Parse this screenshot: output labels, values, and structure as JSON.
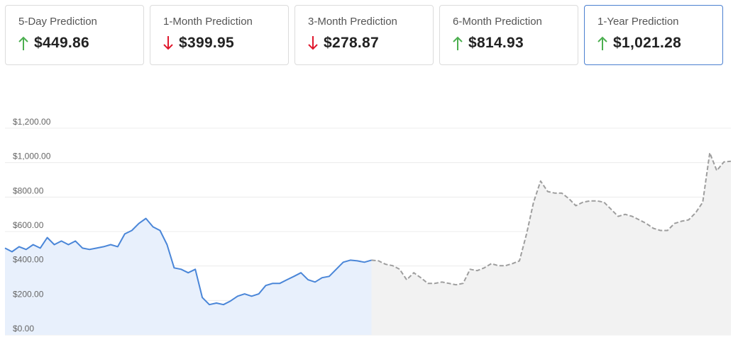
{
  "cards": [
    {
      "label": "5-Day Prediction",
      "value": "$449.86",
      "direction": "up",
      "selected": false
    },
    {
      "label": "1-Month Prediction",
      "value": "$399.95",
      "direction": "down",
      "selected": false
    },
    {
      "label": "3-Month Prediction",
      "value": "$278.87",
      "direction": "down",
      "selected": false
    },
    {
      "label": "6-Month Prediction",
      "value": "$814.93",
      "direction": "up",
      "selected": false
    },
    {
      "label": "1-Year Prediction",
      "value": "$1,021.28",
      "direction": "up",
      "selected": true
    }
  ],
  "arrow_colors": {
    "up": "#4caf50",
    "down": "#e0182d"
  },
  "chart_data": {
    "type": "line",
    "grid": true,
    "ylim": [
      0,
      1200
    ],
    "yticks": [
      {
        "value": 0,
        "label": "$0.00"
      },
      {
        "value": 200,
        "label": "$200.00"
      },
      {
        "value": 400,
        "label": "$400.00"
      },
      {
        "value": 600,
        "label": "$600.00"
      },
      {
        "value": 800,
        "label": "$800.00"
      },
      {
        "value": 1000,
        "label": "$1,000.00"
      },
      {
        "value": 1200,
        "label": "$1,200.00"
      }
    ],
    "series": [
      {
        "color": "#4a86d8",
        "fill": "#e8f0fc",
        "dashed": false,
        "values": [
          504,
          483,
          512,
          496,
          524,
          504,
          565,
          524,
          545,
          524,
          545,
          504,
          496,
          504,
          512,
          524,
          512,
          586,
          606,
          647,
          676,
          627,
          606,
          524,
          389,
          381,
          361,
          381,
          217,
          176,
          185,
          176,
          197,
          225,
          238,
          225,
          238,
          287,
          299,
          299,
          320,
          340,
          361,
          320,
          307,
          332,
          340,
          381,
          422,
          434,
          430,
          422,
          434,
          null,
          null,
          null,
          null,
          null,
          null,
          null,
          null,
          null,
          null,
          null,
          null,
          null,
          null,
          null,
          null,
          null,
          null,
          null,
          null,
          null,
          null,
          null,
          null,
          null,
          null,
          null,
          null,
          null,
          null,
          null,
          null,
          null,
          null,
          null,
          null,
          null,
          null,
          null,
          null,
          null,
          null,
          null,
          null,
          null,
          null,
          null,
          null,
          null,
          null,
          null
        ]
      },
      {
        "color": "#9e9e9e",
        "fill": "#f2f2f2",
        "dashed": true,
        "values": [
          null,
          null,
          null,
          null,
          null,
          null,
          null,
          null,
          null,
          null,
          null,
          null,
          null,
          null,
          null,
          null,
          null,
          null,
          null,
          null,
          null,
          null,
          null,
          null,
          null,
          null,
          null,
          null,
          null,
          null,
          null,
          null,
          null,
          null,
          null,
          null,
          null,
          null,
          null,
          null,
          null,
          null,
          null,
          null,
          null,
          null,
          null,
          null,
          null,
          null,
          null,
          null,
          434,
          430,
          410,
          402,
          381,
          320,
          361,
          332,
          299,
          299,
          307,
          299,
          291,
          299,
          381,
          373,
          389,
          414,
          402,
          402,
          414,
          430,
          586,
          770,
          893,
          832,
          823,
          823,
          791,
          750,
          770,
          778,
          778,
          770,
          729,
          688,
          700,
          688,
          668,
          647,
          619,
          606,
          606,
          647,
          660,
          668,
          709,
          770,
          1057,
          954,
          1004,
          1008
        ]
      }
    ]
  }
}
